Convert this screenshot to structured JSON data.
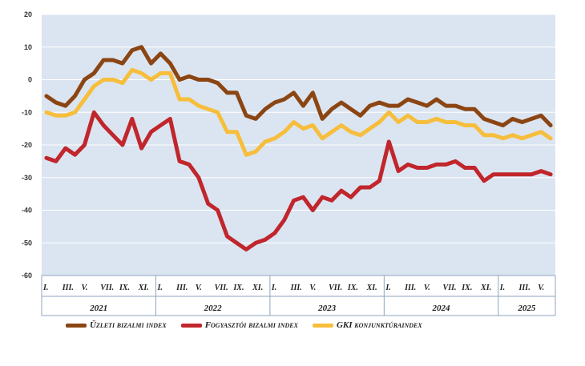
{
  "chart_data": {
    "type": "line",
    "title": "",
    "xlabel": "",
    "ylabel": "",
    "ylim": [
      -60,
      20
    ],
    "yticks": [
      20,
      10,
      0,
      -10,
      -20,
      -30,
      -40,
      -50,
      -60
    ],
    "grid": true,
    "legend_position": "bottom",
    "x_tick_labels": [
      "I.",
      "III.",
      "V.",
      "VII.",
      "IX.",
      "XI.",
      "I.",
      "III.",
      "V.",
      "VII.",
      "IX.",
      "XI.",
      "I.",
      "III.",
      "V.",
      "VII.",
      "IX.",
      "XI.",
      "I.",
      "III.",
      "V.",
      "VII.",
      "IX.",
      "XI.",
      "I.",
      "III.",
      "V."
    ],
    "years": [
      "2021",
      "2022",
      "2023",
      "2024",
      "2025"
    ],
    "months_count": 54,
    "series": [
      {
        "name": "Üzleti bizalmi index",
        "color": "#8B4513",
        "values": [
          -5,
          -7,
          -8,
          -5,
          0,
          2,
          6,
          6,
          5,
          9,
          10,
          5,
          8,
          5,
          0,
          1,
          0,
          0,
          -1,
          -4,
          -4,
          -11,
          -12,
          -9,
          -7,
          -6,
          -4,
          -8,
          -4,
          -12,
          -9,
          -7,
          -9,
          -11,
          -8,
          -7,
          -8,
          -8,
          -6,
          -7,
          -8,
          -6,
          -8,
          -8,
          -9,
          -9,
          -12,
          -13,
          -14,
          -12,
          -13,
          -12,
          -11,
          -14
        ]
      },
      {
        "name": "Fogyasztói bizalmi index",
        "color": "#C0262C",
        "values": [
          -24,
          -25,
          -21,
          -23,
          -20,
          -10,
          -14,
          -17,
          -20,
          -12,
          -21,
          -16,
          -14,
          -12,
          -25,
          -26,
          -30,
          -38,
          -40,
          -48,
          -50,
          -52,
          -50,
          -49,
          -47,
          -43,
          -37,
          -36,
          -40,
          -36,
          -37,
          -34,
          -36,
          -33,
          -33,
          -31,
          -19,
          -28,
          -26,
          -27,
          -27,
          -26,
          -26,
          -25,
          -27,
          -27,
          -31,
          -29,
          -29,
          -29,
          -29,
          -29,
          -28,
          -29
        ]
      },
      {
        "name": "GKI konjunktúraindex",
        "color": "#F6BE3C",
        "values": [
          -10,
          -11,
          -11,
          -10,
          -6,
          -2,
          0,
          0,
          -1,
          3,
          2,
          0,
          2,
          2,
          -6,
          -6,
          -8,
          -9,
          -10,
          -16,
          -16,
          -23,
          -22,
          -19,
          -18,
          -16,
          -13,
          -15,
          -14,
          -18,
          -16,
          -14,
          -16,
          -17,
          -15,
          -13,
          -10,
          -13,
          -11,
          -13,
          -13,
          -12,
          -13,
          -13,
          -14,
          -14,
          -17,
          -17,
          -18,
          -17,
          -18,
          -17,
          -16,
          -18
        ]
      }
    ],
    "legend": [
      "Üzleti bizalmi index",
      "Fogyasztói bizalmi index",
      "GKI konjunktúraindex"
    ]
  }
}
